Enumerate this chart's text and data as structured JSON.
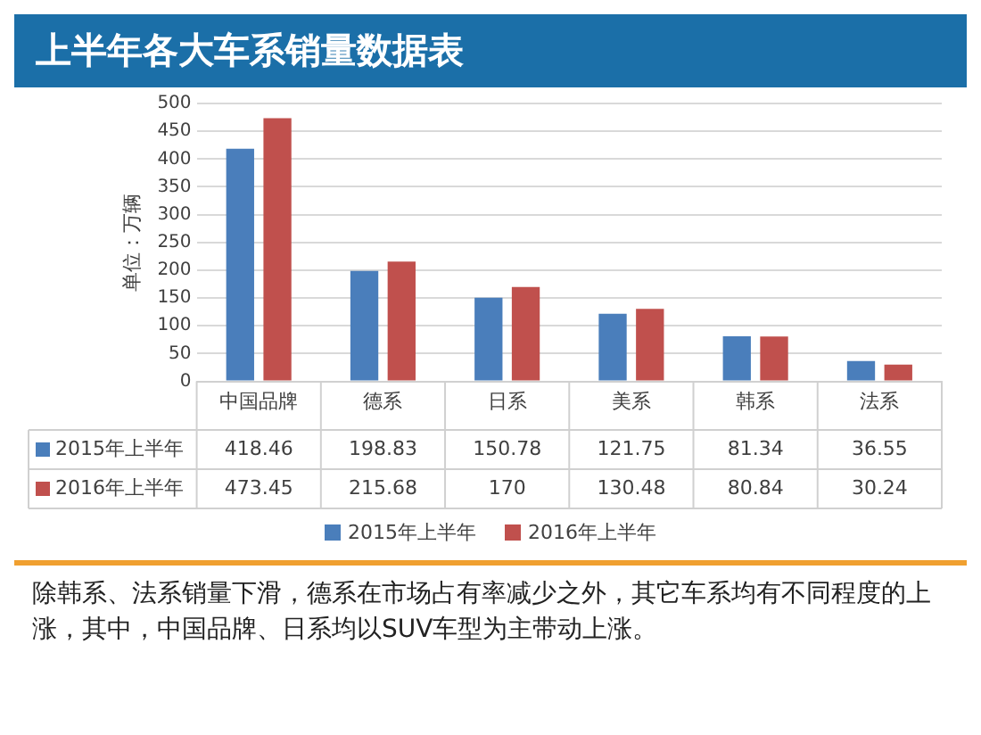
{
  "chart_data": {
    "type": "bar",
    "title": "上半年各大车系销量数据表",
    "ylabel": "单位：万辆",
    "categories": [
      "中国品牌",
      "德系",
      "日系",
      "美系",
      "韩系",
      "法系"
    ],
    "series": [
      {
        "name": "2015年上半年",
        "color": "#4a7ebb",
        "values": [
          418.46,
          198.83,
          150.78,
          121.75,
          81.34,
          36.55
        ]
      },
      {
        "name": "2016年上半年",
        "color": "#c0504d",
        "values": [
          473.45,
          215.68,
          170,
          130.48,
          80.84,
          30.24
        ]
      }
    ],
    "ylim": [
      0,
      500
    ],
    "yticks": [
      0,
      50,
      100,
      150,
      200,
      250,
      300,
      350,
      400,
      450,
      500
    ],
    "grid": "y",
    "legend": "bottom",
    "data_labels": true,
    "annotations": [
      "除韩系、法系销量下滑，德系在市场占有率减少之外，其它车系均有不同程度的上涨，其中，中国品牌、日系均以SUV车型为主带动上涨。"
    ]
  }
}
